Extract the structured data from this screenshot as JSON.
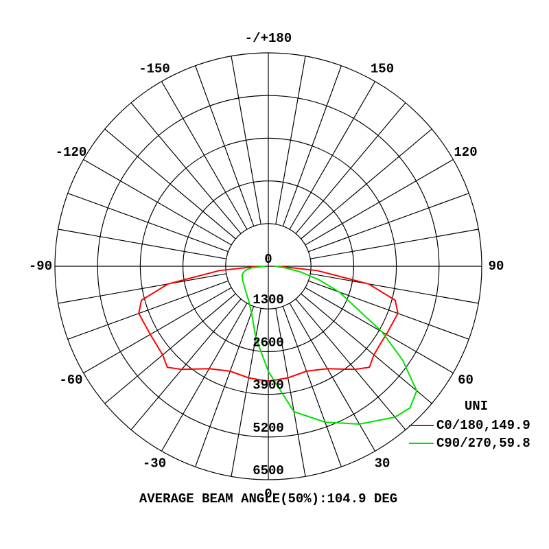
{
  "chart_data": {
    "type": "polar",
    "title": "AVERAGE BEAM ANGLE(50%):104.9 DEG",
    "legend_title": "UNI",
    "x": [
      -90,
      -85,
      -80,
      -75,
      -70,
      -60,
      -50,
      -45,
      -40,
      -30,
      -20,
      -10,
      0,
      10,
      20,
      30,
      40,
      45,
      50,
      55,
      60,
      70,
      75,
      80,
      85,
      90
    ],
    "series": [
      {
        "name": "C0/180,149.9",
        "color": "#ff0000",
        "values": [
          300,
          1500,
          3100,
          4000,
          4200,
          4150,
          4200,
          4350,
          4100,
          3600,
          3400,
          3450,
          3500,
          3450,
          3400,
          3600,
          4100,
          4350,
          4200,
          4150,
          4150,
          4200,
          4000,
          3100,
          1500,
          300
        ]
      },
      {
        "name": "C90/270,59.8",
        "color": "#00e000",
        "values": [
          100,
          500,
          700,
          800,
          850,
          900,
          950,
          1000,
          1050,
          1200,
          1500,
          2200,
          3200,
          4500,
          5050,
          5550,
          6000,
          6100,
          5900,
          5000,
          4000,
          2300,
          1600,
          1000,
          500,
          200
        ]
      }
    ],
    "rlim": [
      0,
      6500
    ],
    "rticks": [
      0,
      1300,
      2600,
      3900,
      5200,
      6500
    ],
    "thetaticks": [
      0,
      30,
      60,
      90,
      120,
      150,
      {
        "value": 180,
        "label": "-/+180"
      },
      -150,
      -120,
      -90,
      -60,
      -30
    ]
  }
}
